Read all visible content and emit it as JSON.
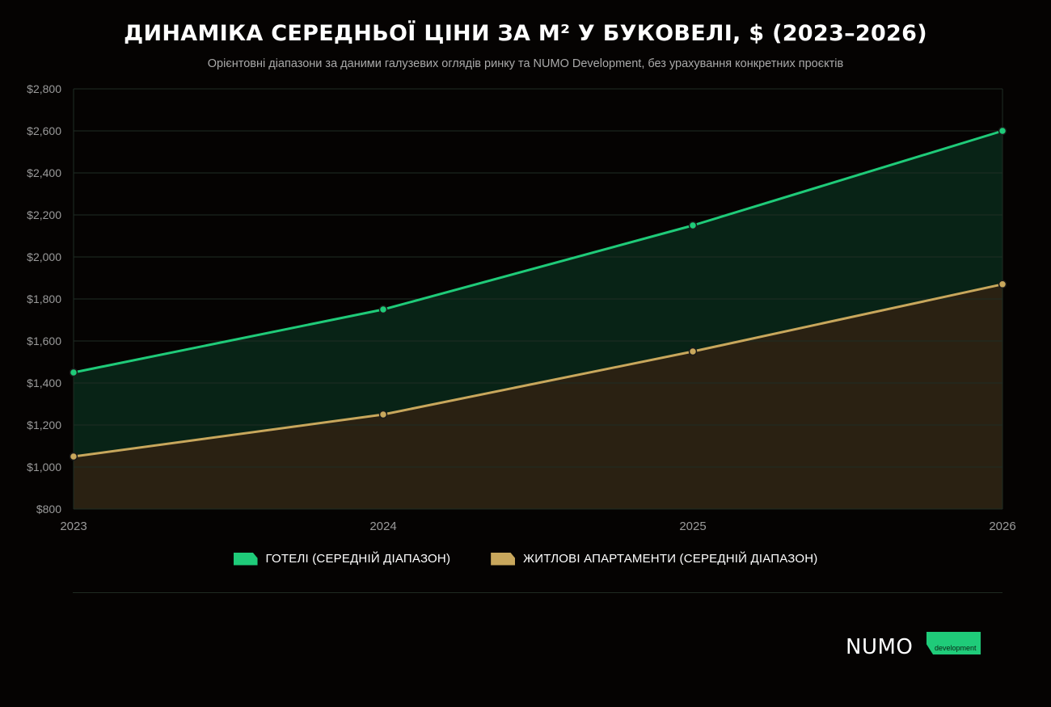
{
  "header": {
    "title": "ДИНАМІКА СЕРЕДНЬОЇ ЦІНИ ЗА М² У БУКОВЕЛІ, $ (2023–2026)",
    "subtitle": "Орієнтовні діапазони за даними галузевих оглядів ринку та NUMO Development, без урахування конкретних проєктів"
  },
  "chart_data": {
    "type": "area",
    "x": [
      "2023",
      "2024",
      "2025",
      "2026"
    ],
    "series": [
      {
        "name": "ГОТЕЛІ (СЕРЕДНІЙ ДІАПАЗОН)",
        "values": [
          1450,
          1750,
          2150,
          2600
        ],
        "color": "#1fcb79",
        "fill": "#082316"
      },
      {
        "name": "ЖИТЛОВІ АПАРТАМЕНТИ (СЕРЕДНІЙ ДІАПАЗОН)",
        "values": [
          1050,
          1250,
          1550,
          1870
        ],
        "color": "#c8a75c",
        "fill": "#2a2112"
      }
    ],
    "ylim": [
      800,
      2800
    ],
    "yticks": [
      800,
      1000,
      1200,
      1400,
      1600,
      1800,
      2000,
      2200,
      2400,
      2600,
      2800
    ],
    "ytick_labels": [
      "$800",
      "$1,000",
      "$1,200",
      "$1,400",
      "$1,600",
      "$1,800",
      "$2,000",
      "$2,200",
      "$2,400",
      "$2,600",
      "$2,800"
    ],
    "grid": true,
    "legend_position": "bottom-center"
  },
  "logo": {
    "word": "NUMO",
    "tag": "development",
    "accent": "#1fcb79"
  },
  "colors": {
    "background": "#050302",
    "grid": "#1f2d24",
    "tick_text": "#9a9a9a"
  }
}
